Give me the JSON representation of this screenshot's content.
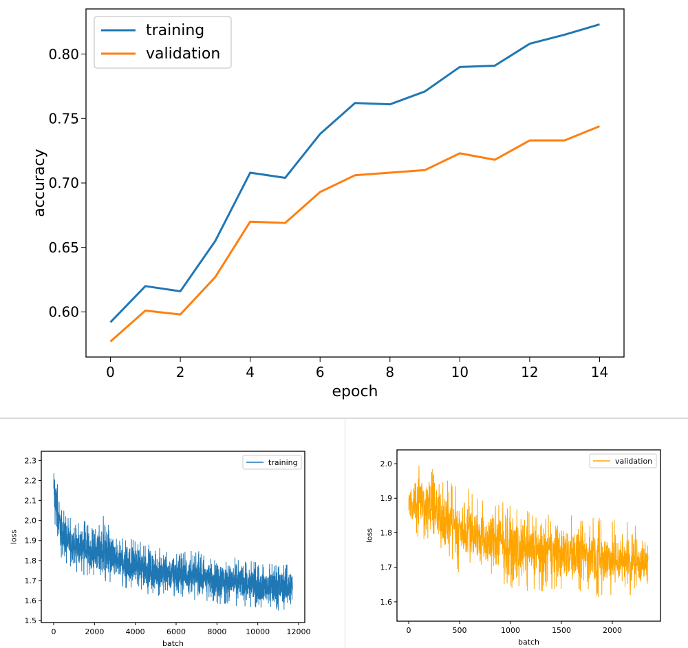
{
  "chart_data": [
    {
      "type": "line",
      "xlabel": "epoch",
      "ylabel": "accuracy",
      "x": [
        0,
        1,
        2,
        3,
        4,
        5,
        6,
        7,
        8,
        9,
        10,
        11,
        12,
        13,
        14
      ],
      "xlim": [
        -0.7,
        14.7
      ],
      "ylim": [
        0.565,
        0.835
      ],
      "xticks": [
        0,
        2,
        4,
        6,
        8,
        10,
        12,
        14
      ],
      "yticks": [
        0.6,
        0.65,
        0.7,
        0.75,
        0.8
      ],
      "ytick_labels": [
        "0.60",
        "0.65",
        "0.70",
        "0.75",
        "0.80"
      ],
      "grid": false,
      "legend_position": "top-left",
      "series": [
        {
          "name": "training",
          "color": "#1f77b4",
          "values": [
            0.592,
            0.62,
            0.616,
            0.655,
            0.708,
            0.704,
            0.738,
            0.762,
            0.761,
            0.771,
            0.79,
            0.791,
            0.808,
            0.815,
            0.823
          ]
        },
        {
          "name": "validation",
          "color": "#ff7f0e",
          "values": [
            0.577,
            0.601,
            0.598,
            0.627,
            0.67,
            0.669,
            0.693,
            0.706,
            0.708,
            0.71,
            0.723,
            0.718,
            0.733,
            0.733,
            0.744
          ]
        }
      ]
    },
    {
      "type": "line",
      "xlabel": "batch",
      "ylabel": "loss",
      "xlim": [
        -607,
        12303
      ],
      "ylim": [
        1.49,
        2.346
      ],
      "xticks": [
        0,
        2000,
        4000,
        6000,
        8000,
        10000,
        12000
      ],
      "yticks": [
        1.5,
        1.6,
        1.7,
        1.8,
        1.9,
        2.0,
        2.1,
        2.2,
        2.3
      ],
      "ytick_labels": [
        "1.5",
        "1.6",
        "1.7",
        "1.8",
        "1.9",
        "2.0",
        "2.1",
        "2.2",
        "2.3"
      ],
      "grid": false,
      "legend_position": "top-right",
      "series": [
        {
          "name": "training",
          "color": "#1f77b4",
          "note_envelope": "noisy per-batch loss; approximate lower/upper envelope",
          "x": [
            0,
            250,
            500,
            1000,
            1500,
            2000,
            2500,
            3000,
            3500,
            4000,
            5000,
            6000,
            7000,
            8000,
            9000,
            10000,
            11000,
            11700
          ],
          "lower": [
            2.0,
            1.85,
            1.78,
            1.75,
            1.72,
            1.72,
            1.68,
            1.67,
            1.65,
            1.65,
            1.62,
            1.61,
            1.6,
            1.58,
            1.57,
            1.56,
            1.55,
            1.55
          ],
          "upper": [
            2.32,
            2.15,
            2.05,
            2.0,
            2.0,
            1.95,
            2.04,
            1.93,
            1.92,
            1.9,
            1.87,
            1.85,
            1.85,
            1.83,
            1.82,
            1.79,
            1.78,
            1.79
          ]
        }
      ]
    },
    {
      "type": "line",
      "xlabel": "batch",
      "ylabel": "loss",
      "xlim": [
        -115,
        2473
      ],
      "ylim": [
        1.544,
        2.04
      ],
      "xticks": [
        0,
        500,
        1000,
        1500,
        2000
      ],
      "yticks": [
        1.6,
        1.7,
        1.8,
        1.9,
        2.0
      ],
      "ytick_labels": [
        "1.6",
        "1.7",
        "1.8",
        "1.9",
        "2.0"
      ],
      "grid": false,
      "legend_position": "top-right",
      "series": [
        {
          "name": "validation",
          "color": "#ffa500",
          "x": [
            0,
            100,
            200,
            300,
            400,
            500,
            600,
            700,
            800,
            900,
            1000,
            1200,
            1400,
            1600,
            1800,
            2000,
            2200,
            2350
          ],
          "lower": [
            1.82,
            1.78,
            1.75,
            1.73,
            1.72,
            1.68,
            1.7,
            1.66,
            1.67,
            1.65,
            1.63,
            1.63,
            1.63,
            1.62,
            1.62,
            1.6,
            1.62,
            1.62
          ],
          "upper": [
            1.95,
            2.01,
            2.0,
            1.97,
            1.95,
            1.93,
            1.93,
            1.9,
            1.88,
            1.9,
            1.88,
            1.86,
            1.86,
            1.85,
            1.85,
            1.84,
            1.83,
            1.8
          ]
        }
      ]
    }
  ]
}
